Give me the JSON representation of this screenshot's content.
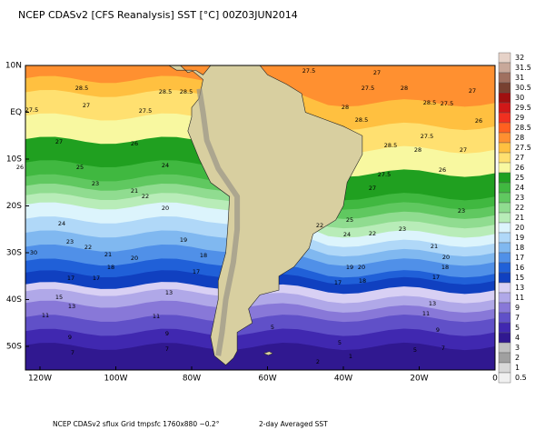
{
  "title": "NCEP CDASv2 [CFS Reanalysis] SST [°C] 00Z03JUN2014",
  "footer": {
    "source": "NCEP CDASv2 sflux Grid tmpsfc 1760x880 ~0.2°",
    "note": "2-day Averaged SST"
  },
  "lat_ticks": [
    {
      "value": 10,
      "label": "10N"
    },
    {
      "value": 0,
      "label": "EQ"
    },
    {
      "value": -10,
      "label": "10S"
    },
    {
      "value": -20,
      "label": "20S"
    },
    {
      "value": -30,
      "label": "30S"
    },
    {
      "value": -40,
      "label": "40S"
    },
    {
      "value": -50,
      "label": "50S"
    }
  ],
  "lon_ticks": [
    {
      "value": -120,
      "label": "120W"
    },
    {
      "value": -100,
      "label": "100W"
    },
    {
      "value": -80,
      "label": "80W"
    },
    {
      "value": -60,
      "label": "60W"
    },
    {
      "value": -40,
      "label": "40W"
    },
    {
      "value": -20,
      "label": "20W"
    },
    0
  ],
  "colorbar": [
    {
      "value": 32,
      "color": "#e6d2c8"
    },
    {
      "value": 31.5,
      "color": "#c8a89a"
    },
    {
      "value": 31,
      "color": "#a07060"
    },
    {
      "value": 30.5,
      "color": "#784030"
    },
    {
      "value": 30,
      "color": "#a01010"
    },
    {
      "value": 29.5,
      "color": "#d01818"
    },
    {
      "value": 29,
      "color": "#f03020"
    },
    {
      "value": 28.5,
      "color": "#ff6020"
    },
    {
      "value": 28,
      "color": "#ff9030"
    },
    {
      "value": 27.5,
      "color": "#ffc040"
    },
    {
      "value": 27,
      "color": "#ffe070"
    },
    {
      "value": 26,
      "color": "#f8f8a0"
    },
    {
      "value": 25,
      "color": "#20a020"
    },
    {
      "value": 24,
      "color": "#40b840"
    },
    {
      "value": 23,
      "color": "#60c860"
    },
    {
      "value": 22,
      "color": "#90dc90"
    },
    {
      "value": 21,
      "color": "#b8ecb8"
    },
    {
      "value": 20,
      "color": "#dcf4fc"
    },
    {
      "value": 19,
      "color": "#b0d8f8"
    },
    {
      "value": 18,
      "color": "#80b8f0"
    },
    {
      "value": 17,
      "color": "#5090e8"
    },
    {
      "value": 16,
      "color": "#2060d8"
    },
    {
      "value": 15,
      "color": "#1040c0"
    },
    {
      "value": 13,
      "color": "#d8d0f4"
    },
    {
      "value": 11,
      "color": "#b0a8e8"
    },
    {
      "value": 9,
      "color": "#8878d8"
    },
    {
      "value": 7,
      "color": "#6050c8"
    },
    {
      "value": 5,
      "color": "#4028b0"
    },
    {
      "value": 4,
      "color": "#301890"
    },
    {
      "value": 3,
      "color": "#c0c0c0"
    },
    {
      "value": 2,
      "color": "#a0a0a0"
    },
    {
      "value": 1,
      "color": "#d8d8d8"
    },
    {
      "value": 0.5,
      "color": "#f0f0f0"
    }
  ],
  "contour_labels": [
    "28.5",
    "27.5",
    "27",
    "27.5",
    "28.5",
    "28.5",
    "27.5",
    "27",
    "27.5",
    "28",
    "27",
    "28",
    "28.5",
    "28.5",
    "27.5",
    "26",
    "27",
    "26",
    "28.5",
    "28",
    "27.5",
    "27",
    "26",
    "25",
    "24",
    "27.5",
    "26",
    "27",
    "23",
    "21",
    "22",
    "20",
    "24",
    "23",
    "22",
    "19",
    "25",
    "22",
    "24",
    "22",
    "23",
    "23",
    "21",
    "20",
    "30",
    "21",
    "20",
    "18",
    "17",
    "17",
    "18",
    "17",
    "19",
    "20",
    "18",
    "17",
    "17",
    "18",
    "15",
    "13",
    "11",
    "13",
    "11",
    "13",
    "11",
    "9",
    "7",
    "9",
    "7",
    "5",
    "5",
    "1",
    "2",
    "9",
    "7",
    "5"
  ]
}
